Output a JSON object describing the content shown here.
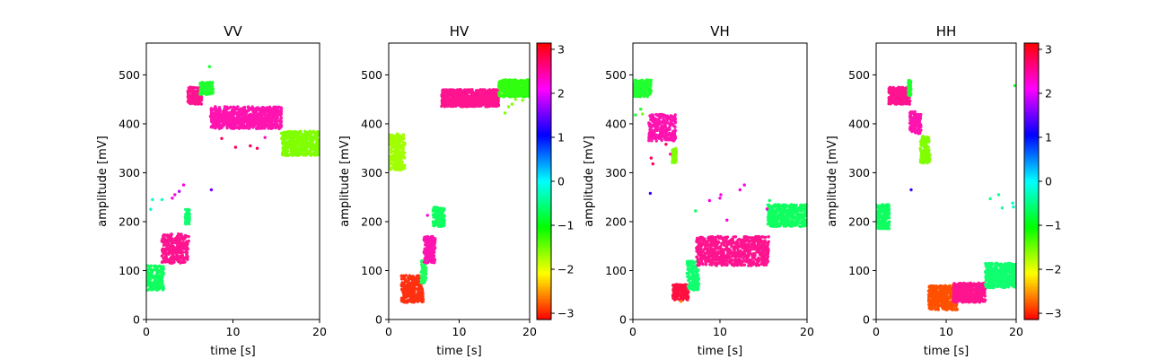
{
  "chart_data": [
    {
      "type": "scatter",
      "title": "VV",
      "xlabel": "time [s]",
      "ylabel": "amplitude [mV]",
      "xlim": [
        0,
        20
      ],
      "ylim": [
        0,
        565
      ],
      "xticks": [
        "0",
        "10",
        "20"
      ],
      "yticks": [
        "0",
        "100",
        "200",
        "300",
        "400",
        "500"
      ],
      "colorbar": false,
      "clusters": [
        {
          "t0": 0.0,
          "t1": 2.0,
          "ymin": 60,
          "ymax": 110,
          "color": "#10ff60"
        },
        {
          "t0": 1.8,
          "t1": 4.9,
          "ymin": 115,
          "ymax": 175,
          "color": "#ff1490"
        },
        {
          "t0": 4.5,
          "t1": 5.0,
          "ymin": 195,
          "ymax": 225,
          "color": "#10ff70"
        },
        {
          "t0": 4.8,
          "t1": 6.4,
          "ymin": 440,
          "ymax": 475,
          "color": "#ff1490"
        },
        {
          "t0": 6.2,
          "t1": 7.7,
          "ymin": 460,
          "ymax": 485,
          "color": "#20ff30"
        },
        {
          "t0": 7.4,
          "t1": 15.6,
          "ymin": 390,
          "ymax": 435,
          "color": "#ff14b0"
        },
        {
          "t0": 15.6,
          "t1": 20.0,
          "ymin": 335,
          "ymax": 385,
          "color": "#80ff00"
        }
      ],
      "points": [
        {
          "x": 0.5,
          "y": 225,
          "c": "#00ffc8"
        },
        {
          "x": 0.7,
          "y": 245,
          "c": "#00ffc8"
        },
        {
          "x": 1.8,
          "y": 245,
          "c": "#00ffc8"
        },
        {
          "x": 3.0,
          "y": 248,
          "c": "#ff00e0"
        },
        {
          "x": 3.3,
          "y": 255,
          "c": "#ff00e0"
        },
        {
          "x": 3.8,
          "y": 262,
          "c": "#c000ff"
        },
        {
          "x": 4.3,
          "y": 275,
          "c": "#ff00e0"
        },
        {
          "x": 7.3,
          "y": 517,
          "c": "#20ff30"
        },
        {
          "x": 7.5,
          "y": 265,
          "c": "#8000ff"
        },
        {
          "x": 8.7,
          "y": 370,
          "c": "#ff0050"
        },
        {
          "x": 10.3,
          "y": 352,
          "c": "#ff0050"
        },
        {
          "x": 12.0,
          "y": 355,
          "c": "#ff0050"
        },
        {
          "x": 12.8,
          "y": 350,
          "c": "#ff0050"
        },
        {
          "x": 13.7,
          "y": 372,
          "c": "#ff14b0"
        }
      ]
    },
    {
      "type": "scatter",
      "title": "HV",
      "xlabel": "time [s]",
      "ylabel": "amplitude [mV]",
      "xlim": [
        0,
        20
      ],
      "ylim": [
        0,
        565
      ],
      "xticks": [
        "0",
        "10",
        "20"
      ],
      "yticks": [
        "0",
        "100",
        "200",
        "300",
        "400",
        "500"
      ],
      "colorbar": true,
      "clusters": [
        {
          "t0": 0.0,
          "t1": 2.3,
          "ymin": 305,
          "ymax": 380,
          "color": "#a0ff00"
        },
        {
          "t0": 1.8,
          "t1": 4.9,
          "ymin": 35,
          "ymax": 90,
          "color": "#ff3010"
        },
        {
          "t0": 4.6,
          "t1": 5.3,
          "ymin": 75,
          "ymax": 120,
          "color": "#20ff60"
        },
        {
          "t0": 5.0,
          "t1": 6.6,
          "ymin": 115,
          "ymax": 170,
          "color": "#ff14b0"
        },
        {
          "t0": 6.3,
          "t1": 7.9,
          "ymin": 190,
          "ymax": 230,
          "color": "#10ff60"
        },
        {
          "t0": 7.5,
          "t1": 15.6,
          "ymin": 435,
          "ymax": 470,
          "color": "#ff1490"
        },
        {
          "t0": 15.6,
          "t1": 20.0,
          "ymin": 455,
          "ymax": 490,
          "color": "#30ff10"
        }
      ],
      "points": [
        {
          "x": 5.5,
          "y": 213,
          "c": "#ff00e0"
        },
        {
          "x": 16.5,
          "y": 422,
          "c": "#80ff00"
        },
        {
          "x": 17.0,
          "y": 435,
          "c": "#80ff00"
        },
        {
          "x": 17.5,
          "y": 440,
          "c": "#80ff00"
        },
        {
          "x": 18.0,
          "y": 450,
          "c": "#80ff00"
        },
        {
          "x": 19.0,
          "y": 448,
          "c": "#80ff00"
        }
      ]
    },
    {
      "type": "scatter",
      "title": "VH",
      "xlabel": "time [s]",
      "ylabel": "amplitude [mV]",
      "xlim": [
        0,
        20
      ],
      "ylim": [
        0,
        565
      ],
      "xticks": [
        "0",
        "10",
        "20"
      ],
      "yticks": [
        "0",
        "100",
        "200",
        "300",
        "400",
        "500"
      ],
      "colorbar": false,
      "clusters": [
        {
          "t0": 0.0,
          "t1": 2.1,
          "ymin": 455,
          "ymax": 490,
          "color": "#20ff30"
        },
        {
          "t0": 1.8,
          "t1": 4.9,
          "ymin": 365,
          "ymax": 420,
          "color": "#ff14b0"
        },
        {
          "t0": 4.5,
          "t1": 5.0,
          "ymin": 320,
          "ymax": 350,
          "color": "#80ff00"
        },
        {
          "t0": 4.6,
          "t1": 6.4,
          "ymin": 40,
          "ymax": 72,
          "color": "#ff1040"
        },
        {
          "t0": 6.2,
          "t1": 7.6,
          "ymin": 60,
          "ymax": 120,
          "color": "#10ff70"
        },
        {
          "t0": 7.3,
          "t1": 15.6,
          "ymin": 110,
          "ymax": 170,
          "color": "#ff1490"
        },
        {
          "t0": 15.5,
          "t1": 20.0,
          "ymin": 190,
          "ymax": 235,
          "color": "#10ff60"
        }
      ],
      "points": [
        {
          "x": 0.3,
          "y": 418,
          "c": "#20ff30"
        },
        {
          "x": 0.9,
          "y": 430,
          "c": "#20ff30"
        },
        {
          "x": 1.1,
          "y": 420,
          "c": "#80ff00"
        },
        {
          "x": 2.0,
          "y": 258,
          "c": "#4000ff"
        },
        {
          "x": 2.1,
          "y": 330,
          "c": "#ff0050"
        },
        {
          "x": 2.3,
          "y": 318,
          "c": "#ff0050"
        },
        {
          "x": 3.8,
          "y": 358,
          "c": "#ff0050"
        },
        {
          "x": 4.3,
          "y": 338,
          "c": "#ff14b0"
        },
        {
          "x": 5.5,
          "y": 37,
          "c": "#ff8000"
        },
        {
          "x": 7.2,
          "y": 222,
          "c": "#10ff60"
        },
        {
          "x": 8.8,
          "y": 243,
          "c": "#ff00e0"
        },
        {
          "x": 10.0,
          "y": 248,
          "c": "#ff00e0"
        },
        {
          "x": 10.1,
          "y": 255,
          "c": "#ff00e0"
        },
        {
          "x": 10.8,
          "y": 203,
          "c": "#ff00e0"
        },
        {
          "x": 12.3,
          "y": 265,
          "c": "#ff00e0"
        },
        {
          "x": 12.8,
          "y": 275,
          "c": "#ff00e0"
        },
        {
          "x": 15.4,
          "y": 226,
          "c": "#ff00e0"
        },
        {
          "x": 15.7,
          "y": 243,
          "c": "#10ff60"
        }
      ]
    },
    {
      "type": "scatter",
      "title": "HH",
      "xlabel": "time [s]",
      "ylabel": "amplitude [mV]",
      "xlim": [
        0,
        20
      ],
      "ylim": [
        0,
        565
      ],
      "xticks": [
        "0",
        "10",
        "20"
      ],
      "yticks": [
        "0",
        "100",
        "200",
        "300",
        "400",
        "500"
      ],
      "colorbar": true,
      "clusters": [
        {
          "t0": 0.0,
          "t1": 1.9,
          "ymin": 185,
          "ymax": 235,
          "color": "#10ff60"
        },
        {
          "t0": 1.8,
          "t1": 4.9,
          "ymin": 440,
          "ymax": 475,
          "color": "#ff1490"
        },
        {
          "t0": 4.6,
          "t1": 5.0,
          "ymin": 455,
          "ymax": 490,
          "color": "#20ff30"
        },
        {
          "t0": 4.8,
          "t1": 6.4,
          "ymin": 380,
          "ymax": 425,
          "color": "#ff14b0"
        },
        {
          "t0": 6.3,
          "t1": 7.7,
          "ymin": 320,
          "ymax": 375,
          "color": "#80ff00"
        },
        {
          "t0": 7.5,
          "t1": 11.6,
          "ymin": 20,
          "ymax": 70,
          "color": "#ff5000"
        },
        {
          "t0": 11.0,
          "t1": 15.6,
          "ymin": 35,
          "ymax": 75,
          "color": "#ff1490"
        },
        {
          "t0": 15.6,
          "t1": 20.0,
          "ymin": 65,
          "ymax": 115,
          "color": "#10ff70"
        }
      ],
      "points": [
        {
          "x": 5.0,
          "y": 265,
          "c": "#4000ff"
        },
        {
          "x": 16.3,
          "y": 247,
          "c": "#10ff90"
        },
        {
          "x": 17.5,
          "y": 255,
          "c": "#10ff90"
        },
        {
          "x": 18.0,
          "y": 228,
          "c": "#10ff90"
        },
        {
          "x": 19.5,
          "y": 238,
          "c": "#00ffc8"
        },
        {
          "x": 19.6,
          "y": 230,
          "c": "#00ffc8"
        },
        {
          "x": 19.8,
          "y": 478,
          "c": "#20ff30"
        }
      ]
    }
  ],
  "colorbar": {
    "ticks": [
      "3",
      "2",
      "1",
      "0",
      "−1",
      "−2",
      "−3"
    ],
    "tick_values": [
      3,
      2,
      1,
      0,
      -1,
      -2,
      -3
    ],
    "range": [
      -3.14159,
      3.14159
    ],
    "colormap": "hsv"
  }
}
